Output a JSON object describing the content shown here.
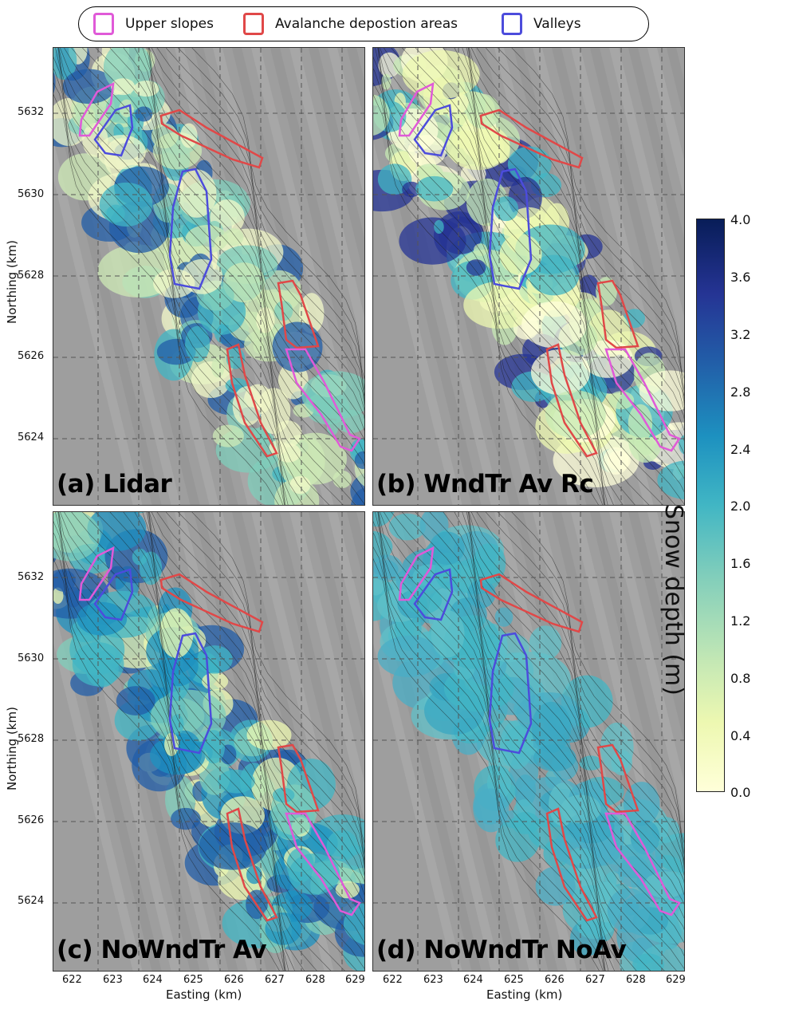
{
  "legend": [
    {
      "label": "Upper slopes",
      "color": "#e05ad8"
    },
    {
      "label": "Avalanche depostion areas",
      "color": "#e04848"
    },
    {
      "label": "Valleys",
      "color": "#4c4cdc"
    }
  ],
  "panels": [
    {
      "id": "a",
      "label": "(a) Lidar"
    },
    {
      "id": "b",
      "label": "(b) WndTr Av Rc"
    },
    {
      "id": "c",
      "label": "(c) NoWndTr Av"
    },
    {
      "id": "d",
      "label": "(d) NoWndTr NoAv"
    }
  ],
  "axes": {
    "ylabel": "Northing (km)",
    "xlabel": "Easting (km)",
    "yticks": [
      "5632",
      "5630",
      "5628",
      "5626",
      "5624"
    ],
    "xticks": [
      "622",
      "623",
      "624",
      "625",
      "626",
      "627",
      "628",
      "629"
    ]
  },
  "colorbar": {
    "title": "Snow depth (m)",
    "ticks": [
      "4.0",
      "3.6",
      "3.2",
      "2.8",
      "2.4",
      "2.0",
      "1.6",
      "1.2",
      "0.8",
      "0.4",
      "0.0"
    ],
    "range": [
      0.0,
      4.0
    ]
  }
}
